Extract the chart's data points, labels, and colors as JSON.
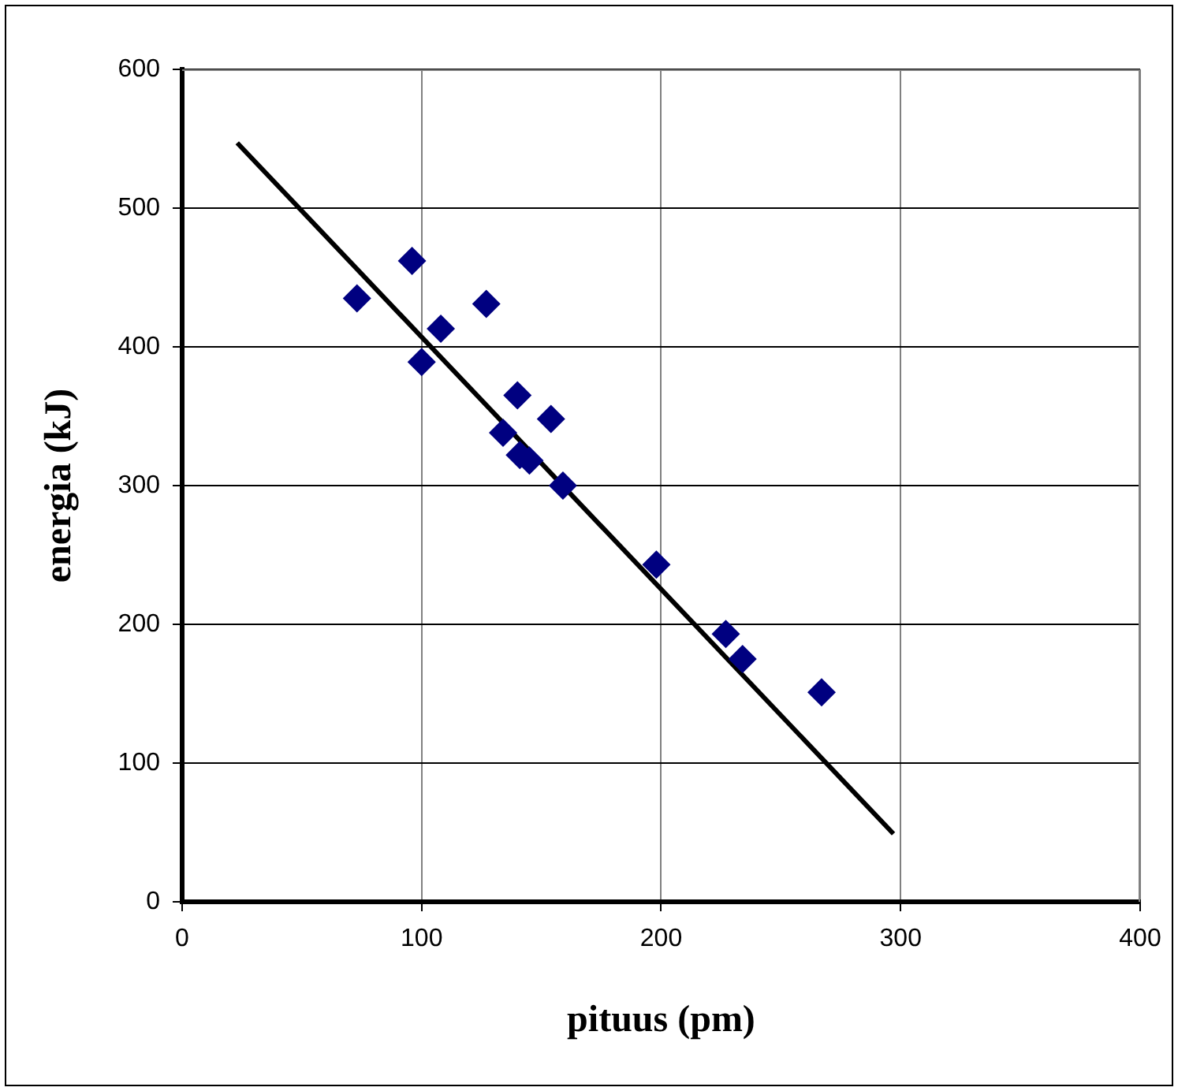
{
  "chart_data": {
    "type": "scatter",
    "xlabel": "pituus (pm)",
    "ylabel": "energia (kJ)",
    "xlim": [
      0,
      400
    ],
    "xticks": [
      0,
      100,
      200,
      300,
      400
    ],
    "ylim": [
      0,
      600
    ],
    "yticks": [
      0,
      100,
      200,
      300,
      400,
      500,
      600
    ],
    "grid": true,
    "legend": false,
    "marker": "diamond",
    "series": [
      {
        "color": "#000080",
        "x": [
          73,
          96,
          108,
          100,
          127,
          140,
          154,
          134,
          141,
          145,
          159,
          198,
          227,
          234,
          267
        ],
        "values": [
          435,
          462,
          413,
          389,
          431,
          365,
          348,
          338,
          322,
          318,
          300,
          243,
          193,
          175,
          151
        ]
      },
      {
        "type": "line",
        "color": "#000000",
        "marker": "none",
        "x": [
          23,
          297
        ],
        "values": [
          547,
          49
        ]
      }
    ]
  }
}
